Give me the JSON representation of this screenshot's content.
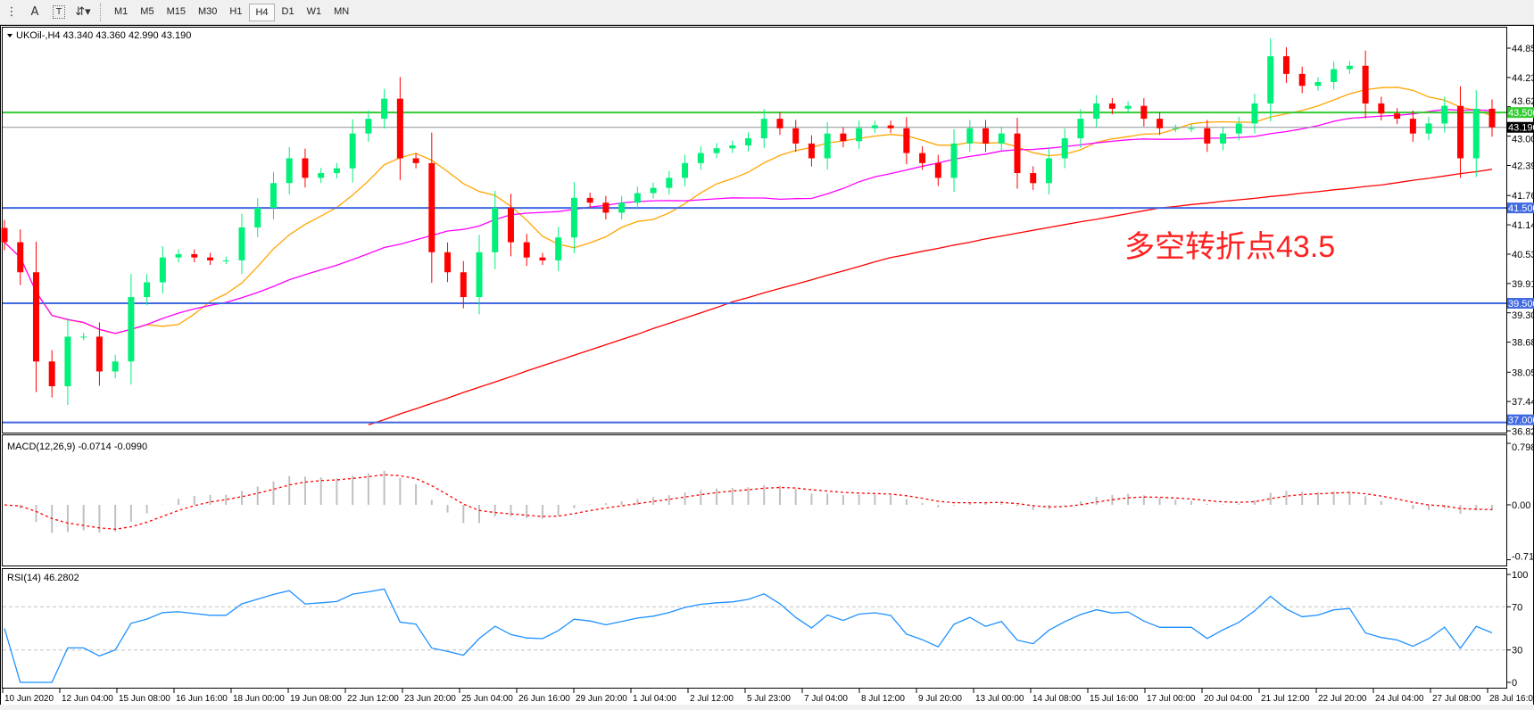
{
  "toolbar": {
    "icons": [
      "fibonacci-fan-icon",
      "text-icon",
      "text-label-icon",
      "arrows-icon"
    ],
    "text_label": "A",
    "timeframes": [
      "M1",
      "M5",
      "M15",
      "M30",
      "H1",
      "H4",
      "D1",
      "W1",
      "MN"
    ],
    "active_timeframe": "H4"
  },
  "chart": {
    "header": "UKOil-,H4  43.340 43.360 42.990 43.190",
    "price_ticks": [
      "44.850",
      "44.235",
      "43.620",
      "43.005",
      "42.390",
      "41.760",
      "41.145",
      "40.530",
      "39.915",
      "39.300",
      "38.685",
      "38.055",
      "37.440",
      "36.825"
    ],
    "levels": [
      {
        "price": 43.5,
        "label": "43.500",
        "color": "#33cc33"
      },
      {
        "price": 43.19,
        "label": "43.190",
        "color": "#000000",
        "line_color": "#8a8f99"
      },
      {
        "price": 41.5,
        "label": "41.500",
        "color": "#4169e1"
      },
      {
        "price": 39.5,
        "label": "39.500",
        "color": "#4169e1"
      },
      {
        "price": 37.0,
        "label": "37.000",
        "color": "#4169e1"
      }
    ],
    "annotation": {
      "text": "多空转折点43.5",
      "color": "#ff2020"
    },
    "macd": {
      "label": "MACD(12,26,9) -0.0714 -0.0990",
      "ticks": [
        "0.7986",
        "0.00",
        "-0.7124"
      ]
    },
    "rsi": {
      "label": "RSI(14) 46.2802",
      "ticks": [
        "100",
        "70",
        "30",
        "0"
      ],
      "levels": [
        70,
        30
      ]
    },
    "time_labels": [
      "10 Jun 2020",
      "12 Jun 04:00",
      "15 Jun 08:00",
      "16 Jun 16:00",
      "18 Jun 00:00",
      "19 Jun 08:00",
      "22 Jun 12:00",
      "23 Jun 20:00",
      "25 Jun 04:00",
      "26 Jun 16:00",
      "29 Jun 20:00",
      "1 Jul 04:00",
      "2 Jul 12:00",
      "5 Jul 23:00",
      "7 Jul 04:00",
      "8 Jul 12:00",
      "9 Jul 20:00",
      "13 Jul 00:00",
      "14 Jul 08:00",
      "15 Jul 16:00",
      "17 Jul 00:00",
      "20 Jul 04:00",
      "21 Jul 12:00",
      "22 Jul 20:00",
      "24 Jul 04:00",
      "27 Jul 08:00",
      "28 Jul 16:00"
    ]
  },
  "chart_data": {
    "type": "candlestick",
    "symbol": "UKOil-",
    "timeframe": "H4",
    "ylim": [
      36.825,
      44.85
    ],
    "closes": [
      40.78,
      40.15,
      38.28,
      37.76,
      38.8,
      38.8,
      38.07,
      38.28,
      39.63,
      39.94,
      40.46,
      40.53,
      40.46,
      40.4,
      40.4,
      41.09,
      41.5,
      42.02,
      42.54,
      42.13,
      42.23,
      42.33,
      43.06,
      43.37,
      43.79,
      42.54,
      42.44,
      40.57,
      40.15,
      39.63,
      40.57,
      41.5,
      40.78,
      40.46,
      40.4,
      40.88,
      41.71,
      41.61,
      41.4,
      41.61,
      41.81,
      41.92,
      42.13,
      42.44,
      42.65,
      42.75,
      42.81,
      42.96,
      43.37,
      43.17,
      42.85,
      42.54,
      43.06,
      42.9,
      43.17,
      43.23,
      43.17,
      42.65,
      42.44,
      42.13,
      42.85,
      43.17,
      42.85,
      43.06,
      42.23,
      42.02,
      42.54,
      42.96,
      43.37,
      43.69,
      43.58,
      43.64,
      43.37,
      43.17,
      43.17,
      43.17,
      42.85,
      43.06,
      43.27,
      43.69,
      44.68,
      44.31,
      44.06,
      44.14,
      44.41,
      44.48,
      43.69,
      43.48,
      43.37,
      43.06,
      43.27,
      43.64,
      42.54,
      43.58,
      43.19
    ],
    "ma_long": [
      null,
      null,
      null,
      null,
      null,
      null,
      null,
      null,
      null,
      null,
      null,
      null,
      null,
      null,
      null,
      null,
      null,
      null,
      null,
      null,
      null,
      null,
      null,
      36.95,
      37.06,
      37.18,
      37.29,
      37.4,
      37.51,
      37.63,
      37.74,
      37.85,
      37.96,
      38.08,
      38.19,
      38.3,
      38.41,
      38.52,
      38.63,
      38.74,
      38.85,
      38.97,
      39.08,
      39.19,
      39.3,
      39.41,
      39.53,
      39.62,
      39.72,
      39.81,
      39.9,
      39.99,
      40.09,
      40.18,
      40.27,
      40.37,
      40.46,
      40.52,
      40.59,
      40.65,
      40.72,
      40.78,
      40.85,
      40.91,
      40.97,
      41.03,
      41.09,
      41.15,
      41.21,
      41.26,
      41.32,
      41.38,
      41.44,
      41.5,
      41.53,
      41.57,
      41.6,
      41.64,
      41.67,
      41.7,
      41.74,
      41.77,
      41.81,
      41.84,
      41.88,
      41.91,
      41.95,
      41.98,
      42.03,
      42.08,
      42.12,
      42.17,
      42.22,
      42.26,
      42.31
    ],
    "colors": {
      "bull": "#00f07a",
      "bear": "#ff0000",
      "ma_fast": "#ffa500",
      "ma_mid": "#ff00ff",
      "ma_long": "#ff0000",
      "macd_hist": "#c0c0c0",
      "macd_signal": "#ff0000",
      "rsi": "#1e90ff"
    }
  }
}
